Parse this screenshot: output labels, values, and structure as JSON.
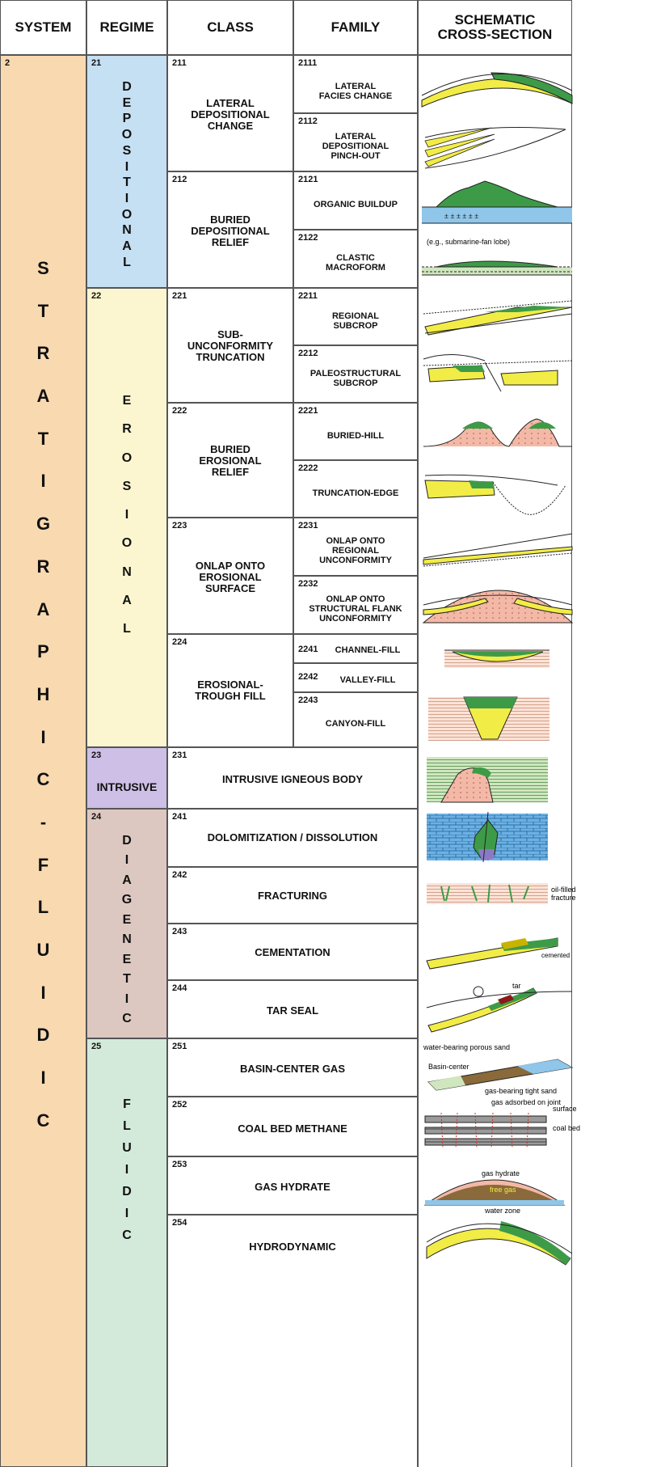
{
  "headers": {
    "system": "SYSTEM",
    "regime": "REGIME",
    "class": "CLASS",
    "family": "FAMILY",
    "schematic": "SCHEMATIC\nCROSS-SECTION"
  },
  "system": {
    "code": "2",
    "letters": [
      "S",
      "T",
      "R",
      "A",
      "T",
      "I",
      "G",
      "R",
      "A",
      "P",
      "H",
      "I",
      "C",
      "-",
      "F",
      "L",
      "U",
      "I",
      "D",
      "I",
      "C"
    ],
    "color": "#f9d9b0"
  },
  "regimes": [
    {
      "code": "21",
      "letters": [
        "D",
        "E",
        "P",
        "O",
        "S",
        "I",
        "T",
        "I",
        "O",
        "N",
        "A",
        "L"
      ],
      "color": "#c5dff3"
    },
    {
      "code": "22",
      "letters": [
        "E",
        "R",
        "O",
        "S",
        "I",
        "O",
        "N",
        "A",
        "L"
      ],
      "color": "#fbf6cf"
    },
    {
      "code": "23",
      "label": "INTRUSIVE",
      "color": "#cdbfe6"
    },
    {
      "code": "24",
      "letters": [
        "D",
        "I",
        "A",
        "G",
        "E",
        "N",
        "E",
        "T",
        "I",
        "C"
      ],
      "color": "#ddc8c1"
    },
    {
      "code": "25",
      "letters": [
        "F",
        "L",
        "U",
        "I",
        "D",
        "I",
        "C"
      ],
      "color": "#d3eadb"
    }
  ],
  "classes": [
    {
      "code": "211",
      "label": "LATERAL\nDEPOSITIONAL\nCHANGE"
    },
    {
      "code": "212",
      "label": "BURIED\nDEPOSITIONAL\nRELIEF"
    },
    {
      "code": "221",
      "label": "SUB-\nUNCONFORMITY\nTRUNCATION"
    },
    {
      "code": "222",
      "label": "BURIED\nEROSIONAL\nRELIEF"
    },
    {
      "code": "223",
      "label": "ONLAP ONTO\nEROSIONAL\nSURFACE"
    },
    {
      "code": "224",
      "label": "EROSIONAL-\nTROUGH FILL"
    },
    {
      "code": "231",
      "label": "INTRUSIVE IGNEOUS BODY"
    },
    {
      "code": "241",
      "label": "DOLOMITIZATION / DISSOLUTION"
    },
    {
      "code": "242",
      "label": "FRACTURING"
    },
    {
      "code": "243",
      "label": "CEMENTATION"
    },
    {
      "code": "244",
      "label": "TAR SEAL"
    },
    {
      "code": "251",
      "label": "BASIN-CENTER GAS"
    },
    {
      "code": "252",
      "label": "COAL BED METHANE"
    },
    {
      "code": "253",
      "label": "GAS HYDRATE"
    },
    {
      "code": "254",
      "label": "HYDRODYNAMIC"
    }
  ],
  "families": [
    {
      "code": "2111",
      "label": "LATERAL\nFACIES CHANGE"
    },
    {
      "code": "2112",
      "label": "LATERAL\nDEPOSITIONAL\nPINCH-OUT"
    },
    {
      "code": "2121",
      "label": "ORGANIC BUILDUP"
    },
    {
      "code": "2122",
      "label": "CLASTIC\nMACROFORM"
    },
    {
      "code": "2211",
      "label": "REGIONAL\nSUBCROP"
    },
    {
      "code": "2212",
      "label": "PALEOSTRUCTURAL\nSUBCROP"
    },
    {
      "code": "2221",
      "label": "BURIED-HILL"
    },
    {
      "code": "2222",
      "label": "TRUNCATION-EDGE"
    },
    {
      "code": "2231",
      "label": "ONLAP ONTO\nREGIONAL\nUNCONFORMITY"
    },
    {
      "code": "2232",
      "label": "ONLAP ONTO\nSTRUCTURAL FLANK\nUNCONFORMITY"
    },
    {
      "code": "2241",
      "label": "CHANNEL-FILL"
    },
    {
      "code": "2242",
      "label": "VALLEY-FILL"
    },
    {
      "code": "2243",
      "label": "CANYON-FILL"
    }
  ],
  "notes": {
    "clastic": "(e.g., submarine-fan lobe)",
    "oil_filled": "oil-filled",
    "fracture": "fracture",
    "cemented": "cemented",
    "tar": "tar",
    "water_bearing": "water-bearing porous sand",
    "basin_center": "Basin-center",
    "gas_bearing": "gas-bearing tight sand",
    "gas_adsorbed": "gas adsorbed on joint",
    "surface": "surface",
    "coal_bed": "coal bed",
    "gas_hydrate": "gas hydrate",
    "free_gas": "free gas",
    "water_zone": "water zone"
  },
  "colors": {
    "green": "#3d9b48",
    "yellow": "#f2ec46",
    "blue": "#8fc6ea",
    "pink": "#f4b8a6",
    "brown": "#8a6a3a",
    "purple": "#8b79c6"
  }
}
